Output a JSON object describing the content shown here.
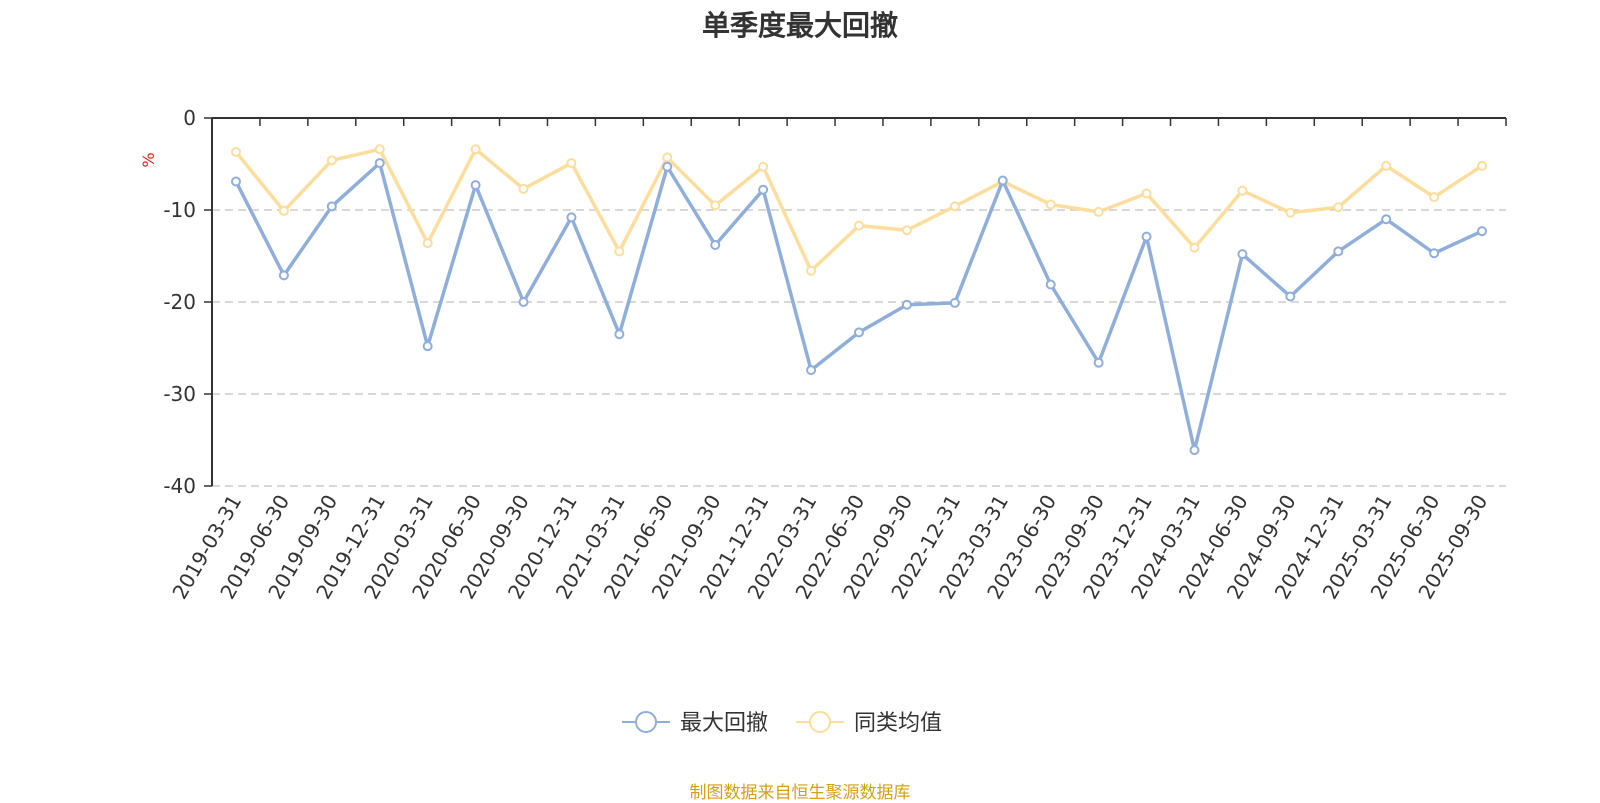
{
  "colors": {
    "series1": "#8faedb",
    "series2": "#fddd9c",
    "unit": "#e02020",
    "source": "#d4a017"
  },
  "chart_data": {
    "type": "line",
    "title": "单季度最大回撤",
    "ylabel": "%",
    "ylim": [
      -40,
      0
    ],
    "yticks": [
      0,
      -10,
      -20,
      -30,
      -40
    ],
    "grid": true,
    "legend_position": "bottom-center",
    "categories": [
      "2019-03-31",
      "2019-06-30",
      "2019-09-30",
      "2019-12-31",
      "2020-03-31",
      "2020-06-30",
      "2020-09-30",
      "2020-12-31",
      "2021-03-31",
      "2021-06-30",
      "2021-09-30",
      "2021-12-31",
      "2022-03-31",
      "2022-06-30",
      "2022-09-30",
      "2022-12-31",
      "2023-03-31",
      "2023-06-30",
      "2023-09-30",
      "2023-12-31",
      "2024-03-31",
      "2024-06-30",
      "2024-09-30",
      "2024-12-31",
      "2025-03-31",
      "2025-06-30",
      "2025-09-30"
    ],
    "series": [
      {
        "name": "最大回撤",
        "values": [
          -6.9,
          -17.1,
          -9.6,
          -4.9,
          -24.8,
          -7.3,
          -20.0,
          -10.8,
          -23.5,
          -5.3,
          -13.8,
          -7.8,
          -27.4,
          -23.3,
          -20.3,
          -20.1,
          -6.8,
          -18.1,
          -26.6,
          -12.9,
          -36.1,
          -14.8,
          -19.4,
          -14.5,
          -11.0,
          -14.7,
          -12.3
        ]
      },
      {
        "name": "同类均值",
        "values": [
          -3.7,
          -10.1,
          -4.6,
          -3.4,
          -13.6,
          -3.4,
          -7.7,
          -4.9,
          -14.5,
          -4.3,
          -9.5,
          -5.3,
          -16.6,
          -11.7,
          -12.2,
          -9.6,
          -6.9,
          -9.4,
          -10.2,
          -8.2,
          -14.1,
          -7.9,
          -10.3,
          -9.7,
          -5.2,
          -8.6,
          -5.2
        ]
      }
    ]
  },
  "footer": {
    "source": "制图数据来自恒生聚源数据库"
  }
}
